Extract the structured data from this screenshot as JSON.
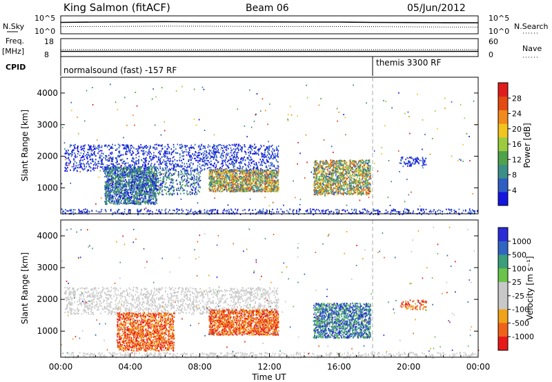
{
  "header": {
    "station": "King Salmon (fitACF)",
    "beam": "Beam 06",
    "date": "05/Jun/2012"
  },
  "noise_panel": {
    "left_label": "N.Sky",
    "right_label": "N.Search",
    "left_ticks": [
      "10^5",
      "10^0"
    ],
    "right_ticks": [
      "10^5",
      "10^0"
    ]
  },
  "freq_panel": {
    "left_label_1": "Freq.",
    "left_label_2": "[MHz]",
    "right_label": "Nave",
    "left_ticks": [
      "18",
      "8"
    ],
    "right_ticks": [
      "60",
      "0"
    ]
  },
  "cpid": {
    "label": "CPID",
    "modes": [
      {
        "name": "normalsound (fast) -157 RF",
        "start_hour": 0
      },
      {
        "name": "themis 3300 RF",
        "start_hour": 18
      }
    ]
  },
  "colors": {
    "power_scale": [
      "#1515e0",
      "#2e5ec4",
      "#3b8f86",
      "#4fa24a",
      "#9ccc3e",
      "#f2c41d",
      "#f28a1c",
      "#e44a12",
      "#e01c1c"
    ],
    "velocity_scale": [
      "#2a2ad6",
      "#2f66c2",
      "#3a9e7a",
      "#6ac449",
      "#c8c8c8",
      "#c8c8c8",
      "#f0a21a",
      "#f0621a",
      "#e81818"
    ]
  },
  "chart_data": [
    {
      "type": "line",
      "title": "",
      "xlabel": "",
      "ylabel": "N.Sky",
      "y2label": "N.Search",
      "xlim": [
        0,
        24
      ],
      "yscale": "log",
      "ylim": [
        1,
        100000
      ],
      "series": [
        {
          "name": "N.Sky",
          "style": "solid",
          "x": [
            0,
            2,
            4,
            6,
            8,
            10,
            12,
            14,
            16,
            18,
            20,
            22,
            24
          ],
          "values": [
            2000,
            2500,
            3000,
            3500,
            3000,
            3000,
            2800,
            2600,
            2500,
            2000,
            1800,
            1600,
            1500
          ]
        },
        {
          "name": "N.Search",
          "style": "dotted",
          "x": [
            0,
            2,
            4,
            6,
            8,
            10,
            12,
            14,
            16,
            18,
            20,
            22,
            24
          ],
          "values": [
            80,
            90,
            100,
            120,
            110,
            100,
            90,
            90,
            85,
            80,
            70,
            60,
            60
          ]
        }
      ]
    },
    {
      "type": "line",
      "title": "",
      "xlabel": "",
      "ylabel": "Freq. [MHz]",
      "y2label": "Nave",
      "xlim": [
        0,
        24
      ],
      "ylim": [
        8,
        18
      ],
      "y2lim": [
        0,
        60
      ],
      "series": [
        {
          "name": "Freq.",
          "style": "solid",
          "x": [
            0,
            24
          ],
          "values": [
            10.5,
            10.5
          ]
        },
        {
          "name": "Nave",
          "style": "dotted",
          "x": [
            0,
            24
          ],
          "values": [
            22,
            22
          ]
        }
      ]
    },
    {
      "type": "heatmap",
      "title": "",
      "xlabel": "",
      "ylabel": "Slant Range [km]",
      "xlim": [
        0,
        24
      ],
      "ylim": [
        180,
        4500
      ],
      "yticks": [
        "1000",
        "2000",
        "3000",
        "4000"
      ],
      "colorbar": {
        "label": "Power [dB]",
        "ticks": [
          "4",
          "8",
          "12",
          "16",
          "20",
          "24",
          "28"
        ]
      },
      "regions": [
        {
          "start_hour": 0.2,
          "end_hour": 12.5,
          "range_km": [
            1550,
            2400
          ],
          "level": "low",
          "density": "high"
        },
        {
          "start_hour": 2.5,
          "end_hour": 5.5,
          "range_km": [
            500,
            1700
          ],
          "level": "mid",
          "density": "high"
        },
        {
          "start_hour": 4.0,
          "end_hour": 8.0,
          "range_km": [
            800,
            1600
          ],
          "level": "mid",
          "density": "medium"
        },
        {
          "start_hour": 8.5,
          "end_hour": 12.5,
          "range_km": [
            900,
            1600
          ],
          "level": "high",
          "density": "high"
        },
        {
          "start_hour": 14.5,
          "end_hour": 17.8,
          "range_km": [
            800,
            1900
          ],
          "level": "high",
          "density": "high"
        },
        {
          "start_hour": 0,
          "end_hour": 24,
          "range_km": [
            180,
            350
          ],
          "level": "low",
          "density": "medium"
        },
        {
          "start_hour": 19.5,
          "end_hour": 21.0,
          "range_km": [
            1700,
            2000
          ],
          "level": "low",
          "density": "low"
        }
      ]
    },
    {
      "type": "heatmap",
      "title": "",
      "xlabel": "Time UT",
      "ylabel": "Slant Range [km]",
      "xlim": [
        0,
        24
      ],
      "ylim": [
        180,
        4500
      ],
      "xticks": [
        "00:00",
        "04:00",
        "08:00",
        "12:00",
        "16:00",
        "20:00",
        "00:00"
      ],
      "yticks": [
        "1000",
        "2000",
        "3000",
        "4000"
      ],
      "colorbar": {
        "label": "Velocity [m s⁻¹]",
        "ticks": [
          "1000",
          "500",
          "100",
          "25",
          "-25",
          "-100",
          "-500",
          "-1000"
        ]
      },
      "regions": [
        {
          "start_hour": 0.2,
          "end_hour": 12.5,
          "range_km": [
            1550,
            2400
          ],
          "level": "ground",
          "density": "high"
        },
        {
          "start_hour": 3.2,
          "end_hour": 6.5,
          "range_km": [
            400,
            1600
          ],
          "level": "negative",
          "density": "high"
        },
        {
          "start_hour": 8.5,
          "end_hour": 12.5,
          "range_km": [
            900,
            1700
          ],
          "level": "negative",
          "density": "high"
        },
        {
          "start_hour": 14.5,
          "end_hour": 17.8,
          "range_km": [
            800,
            1900
          ],
          "level": "positive",
          "density": "high"
        },
        {
          "start_hour": 0,
          "end_hour": 24,
          "range_km": [
            180,
            350
          ],
          "level": "ground",
          "density": "medium"
        },
        {
          "start_hour": 19.5,
          "end_hour": 21.0,
          "range_km": [
            1700,
            2000
          ],
          "level": "negative",
          "density": "low"
        }
      ]
    }
  ]
}
